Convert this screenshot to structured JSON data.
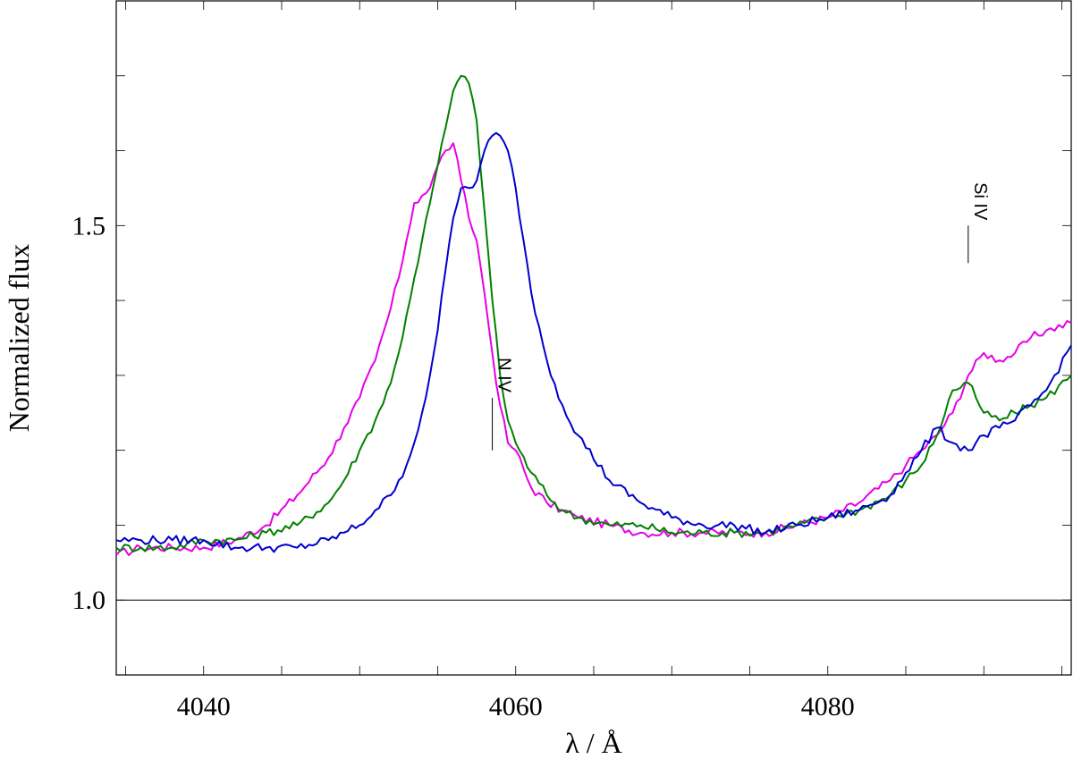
{
  "chart_data": {
    "type": "line",
    "title": "",
    "xlabel": "λ / Å",
    "ylabel": "Normalized flux",
    "xlim": [
      4034.4,
      4095.6
    ],
    "ylim": [
      0.9,
      1.8
    ],
    "x_ticks": [
      4040,
      4060,
      4080
    ],
    "y_ticks": [
      1.0,
      1.5
    ],
    "minor_x_step": 5,
    "minor_y_step": 0.1,
    "reference_line_y": 1.0,
    "grid": false,
    "legend": "none",
    "series": [
      {
        "color": "#e600e6",
        "x": [
          4034.4,
          4036,
          4038,
          4040,
          4042,
          4044,
          4046,
          4048,
          4049,
          4050,
          4051,
          4052,
          4052.5,
          4053,
          4053.5,
          4054,
          4054.5,
          4055,
          4055.5,
          4056,
          4056.5,
          4057,
          4057.5,
          4058,
          4058.5,
          4059,
          4059.5,
          4060,
          4061,
          4062,
          4063,
          4064,
          4066,
          4068,
          4070,
          4072,
          4074,
          4076,
          4078,
          4080,
          4082,
          4084,
          4085,
          4086,
          4087,
          4088,
          4089,
          4090,
          4091,
          4092,
          4093,
          4094,
          4095.6
        ],
        "y": [
          1.06,
          1.07,
          1.07,
          1.07,
          1.08,
          1.1,
          1.14,
          1.19,
          1.23,
          1.27,
          1.32,
          1.39,
          1.43,
          1.48,
          1.53,
          1.54,
          1.55,
          1.58,
          1.6,
          1.61,
          1.56,
          1.51,
          1.48,
          1.41,
          1.33,
          1.26,
          1.21,
          1.2,
          1.15,
          1.13,
          1.12,
          1.11,
          1.1,
          1.09,
          1.09,
          1.09,
          1.09,
          1.09,
          1.1,
          1.11,
          1.13,
          1.16,
          1.18,
          1.2,
          1.22,
          1.25,
          1.3,
          1.33,
          1.32,
          1.33,
          1.35,
          1.36,
          1.37
        ]
      },
      {
        "color": "#008000",
        "x": [
          4034.4,
          4036,
          4038,
          4040,
          4042,
          4044,
          4046,
          4048,
          4049,
          4050,
          4051,
          4052,
          4052.5,
          4053,
          4053.5,
          4054,
          4054.5,
          4055,
          4055.5,
          4056,
          4056.5,
          4057,
          4057.5,
          4058,
          4058.5,
          4059,
          4059.5,
          4060,
          4061,
          4062,
          4063,
          4064,
          4066,
          4068,
          4070,
          4072,
          4074,
          4076,
          4078,
          4080,
          4082,
          4084,
          4085,
          4086,
          4087,
          4088,
          4089,
          4089.5,
          4090,
          4091,
          4092,
          4093,
          4094,
          4095.6
        ],
        "y": [
          1.07,
          1.07,
          1.07,
          1.08,
          1.08,
          1.09,
          1.1,
          1.13,
          1.16,
          1.2,
          1.24,
          1.29,
          1.33,
          1.38,
          1.43,
          1.48,
          1.53,
          1.58,
          1.63,
          1.68,
          1.7,
          1.69,
          1.64,
          1.52,
          1.4,
          1.3,
          1.24,
          1.21,
          1.17,
          1.14,
          1.12,
          1.11,
          1.1,
          1.1,
          1.09,
          1.09,
          1.09,
          1.09,
          1.1,
          1.11,
          1.12,
          1.14,
          1.16,
          1.18,
          1.22,
          1.28,
          1.29,
          1.27,
          1.25,
          1.24,
          1.25,
          1.26,
          1.27,
          1.3
        ]
      },
      {
        "color": "#0000cc",
        "x": [
          4034.4,
          4036,
          4038,
          4040,
          4042,
          4044,
          4046,
          4048,
          4049,
          4050,
          4051,
          4052,
          4052.5,
          4053,
          4053.5,
          4054,
          4054.5,
          4055,
          4055.5,
          4056,
          4056.5,
          4057,
          4057.5,
          4058,
          4058.5,
          4059,
          4059.5,
          4060,
          4060.5,
          4061,
          4062,
          4063,
          4064,
          4066,
          4068,
          4070,
          4072,
          4074,
          4076,
          4078,
          4080,
          4082,
          4084,
          4085,
          4086,
          4087,
          4088,
          4089,
          4090,
          4091,
          4092,
          4093,
          4094,
          4095.6
        ],
        "y": [
          1.08,
          1.08,
          1.08,
          1.08,
          1.07,
          1.07,
          1.07,
          1.08,
          1.09,
          1.1,
          1.12,
          1.14,
          1.16,
          1.18,
          1.21,
          1.25,
          1.3,
          1.36,
          1.44,
          1.51,
          1.55,
          1.55,
          1.56,
          1.6,
          1.62,
          1.62,
          1.6,
          1.55,
          1.48,
          1.41,
          1.32,
          1.26,
          1.22,
          1.16,
          1.13,
          1.11,
          1.1,
          1.1,
          1.09,
          1.1,
          1.11,
          1.12,
          1.14,
          1.17,
          1.2,
          1.23,
          1.21,
          1.2,
          1.22,
          1.23,
          1.24,
          1.26,
          1.28,
          1.34
        ]
      }
    ],
    "annotations": [
      {
        "label": "N IV",
        "x": 4058.5,
        "y_bottom": 1.2,
        "y_top": 1.27
      },
      {
        "label": "Si IV",
        "x": 4089,
        "y_bottom": 1.45,
        "y_top": 1.5
      }
    ]
  }
}
